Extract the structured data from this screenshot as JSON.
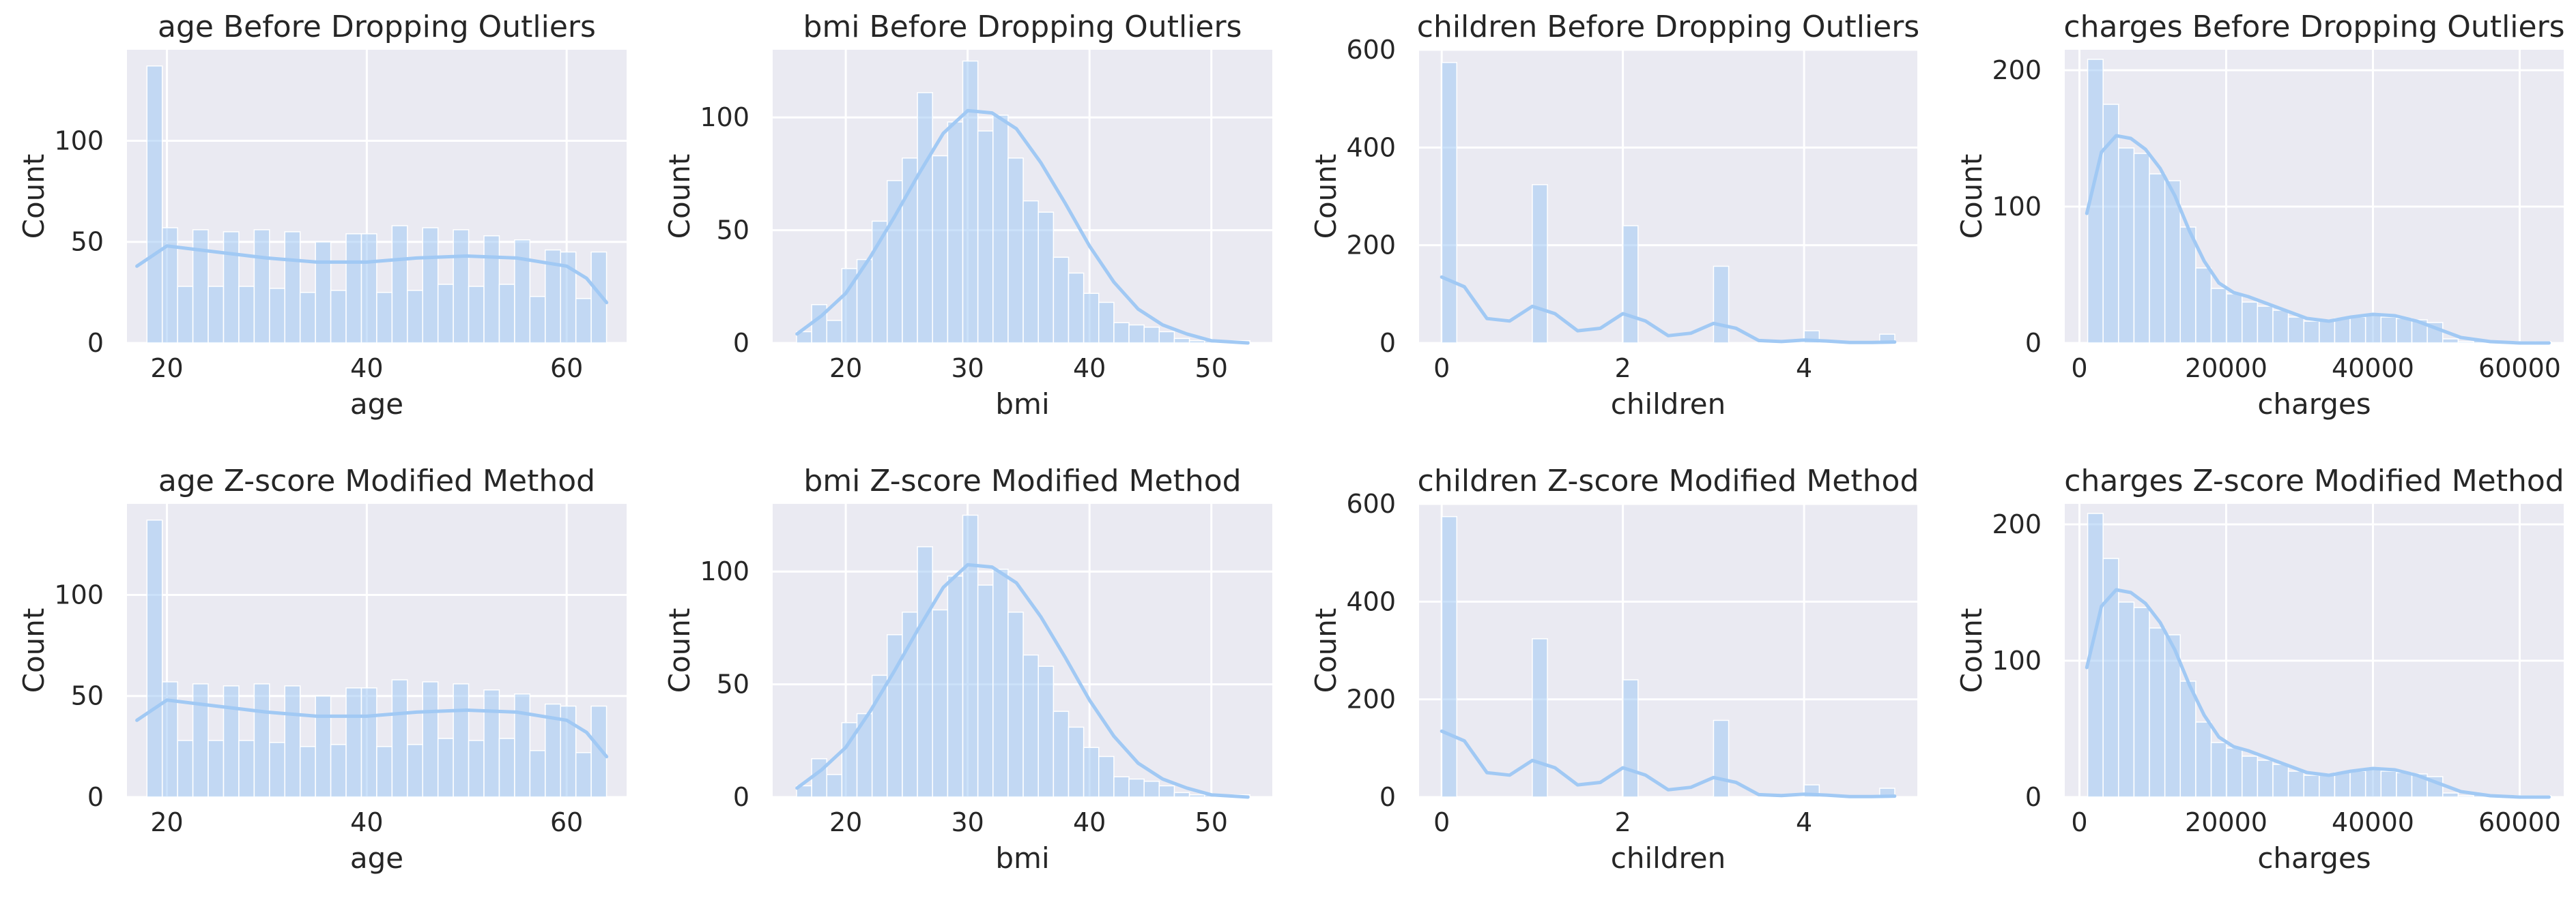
{
  "figure": {
    "rows": 2,
    "cols": 4
  },
  "colors": {
    "panel_bg": "#EAEAF2",
    "grid": "#FFFFFF",
    "bar_fill": "#A1C9F4",
    "bar_edge": "#FFFFFF",
    "kde_line": "#A1C9F4",
    "text": "#262626"
  },
  "chart_data": [
    {
      "type": "bar",
      "title": "age Before Dropping Outliers",
      "xlabel": "age",
      "ylabel": "Count",
      "xlim": [
        16,
        66
      ],
      "ylim": [
        0,
        145
      ],
      "xticks": [
        20,
        40,
        60
      ],
      "xtick_labels": [
        "20",
        "40",
        "60"
      ],
      "yticks": [
        0,
        50,
        100
      ],
      "ytick_labels": [
        "0",
        "50",
        "100"
      ],
      "bin_start": 18,
      "bin_width": 1.533,
      "values": [
        137,
        57,
        28,
        56,
        28,
        55,
        28,
        56,
        27,
        55,
        25,
        50,
        26,
        54,
        54,
        25,
        58,
        26,
        57,
        29,
        56,
        28,
        53,
        29,
        51,
        23,
        46,
        45,
        22,
        45
      ],
      "kde": {
        "x": [
          17,
          20,
          25,
          30,
          35,
          40,
          45,
          50,
          55,
          60,
          62,
          64
        ],
        "y": [
          38,
          48,
          45,
          42,
          40,
          40,
          42,
          43,
          42,
          38,
          32,
          20
        ]
      }
    },
    {
      "type": "bar",
      "title": "bmi Before Dropping Outliers",
      "xlabel": "bmi",
      "ylabel": "Count",
      "xlim": [
        14,
        55
      ],
      "ylim": [
        0,
        130
      ],
      "xticks": [
        20,
        30,
        40,
        50
      ],
      "xtick_labels": [
        "20",
        "30",
        "40",
        "50"
      ],
      "yticks": [
        0,
        50,
        100
      ],
      "ytick_labels": [
        "0",
        "50",
        "100"
      ],
      "bin_start": 15.96,
      "bin_width": 1.24,
      "values": [
        5,
        17,
        10,
        33,
        37,
        54,
        72,
        82,
        111,
        83,
        98,
        125,
        94,
        101,
        82,
        63,
        58,
        38,
        31,
        22,
        18,
        9,
        8,
        7,
        5,
        2,
        1,
        1,
        1,
        1
      ],
      "kde": {
        "x": [
          16,
          18,
          20,
          22,
          24,
          26,
          28,
          30,
          32,
          34,
          36,
          38,
          40,
          42,
          44,
          46,
          48,
          50,
          53
        ],
        "y": [
          4,
          12,
          22,
          38,
          56,
          75,
          93,
          103,
          102,
          95,
          80,
          62,
          43,
          27,
          15,
          8,
          4,
          1,
          0
        ]
      }
    },
    {
      "type": "bar",
      "title": "children Before Dropping Outliers",
      "xlabel": "children",
      "ylabel": "Count",
      "xlim": [
        -0.25,
        5.25
      ],
      "ylim": [
        0,
        600
      ],
      "xticks": [
        0,
        2,
        4
      ],
      "xtick_labels": [
        "0",
        "2",
        "4"
      ],
      "yticks": [
        0,
        200,
        400,
        600
      ],
      "ytick_labels": [
        "0",
        "200",
        "400",
        "600"
      ],
      "bin_start": 0,
      "bin_width": 0.1667,
      "values": [
        574,
        0,
        0,
        0,
        0,
        0,
        324,
        0,
        0,
        0,
        0,
        0,
        240,
        0,
        0,
        0,
        0,
        0,
        157,
        0,
        0,
        0,
        0,
        0,
        25,
        0,
        0,
        0,
        0,
        18
      ],
      "kde": {
        "x": [
          0,
          0.25,
          0.5,
          0.75,
          1,
          1.25,
          1.5,
          1.75,
          2,
          2.25,
          2.5,
          2.75,
          3,
          3.25,
          3.5,
          3.75,
          4,
          4.25,
          4.5,
          4.75,
          5
        ],
        "y": [
          135,
          115,
          50,
          45,
          75,
          60,
          25,
          30,
          60,
          45,
          15,
          20,
          40,
          30,
          5,
          3,
          6,
          4,
          1,
          1,
          2
        ]
      }
    },
    {
      "type": "bar",
      "title": "charges Before Dropping Outliers",
      "xlabel": "charges",
      "ylabel": "Count",
      "xlim": [
        -2000,
        66000
      ],
      "ylim": [
        0,
        215
      ],
      "xticks": [
        0,
        20000,
        40000,
        60000
      ],
      "xtick_labels": [
        "0",
        "20000",
        "40000",
        "60000"
      ],
      "yticks": [
        0,
        100,
        200
      ],
      "ytick_labels": [
        "0",
        "100",
        "200"
      ],
      "bin_start": 1122,
      "bin_width": 2104,
      "values": [
        208,
        175,
        143,
        139,
        124,
        119,
        85,
        55,
        40,
        36,
        30,
        27,
        24,
        19,
        16,
        17,
        18,
        19,
        21,
        19,
        18,
        17,
        15,
        3,
        1,
        2,
        1,
        1,
        1,
        1
      ],
      "kde": {
        "x": [
          1000,
          3000,
          5000,
          7000,
          9000,
          11000,
          13000,
          15000,
          17000,
          19000,
          21000,
          23000,
          25000,
          28000,
          31000,
          34000,
          37000,
          40000,
          43000,
          46000,
          49000,
          52000,
          56000,
          60000,
          64000
        ],
        "y": [
          95,
          140,
          152,
          150,
          142,
          128,
          108,
          82,
          60,
          44,
          37,
          34,
          30,
          24,
          18,
          16,
          19,
          21,
          20,
          16,
          10,
          4,
          1,
          0,
          0
        ]
      }
    },
    {
      "type": "bar",
      "title": "age  Z-score Modified Method",
      "xlabel": "age",
      "ylabel": "Count",
      "xlim": [
        16,
        66
      ],
      "ylim": [
        0,
        145
      ],
      "xticks": [
        20,
        40,
        60
      ],
      "xtick_labels": [
        "20",
        "40",
        "60"
      ],
      "yticks": [
        0,
        50,
        100
      ],
      "ytick_labels": [
        "0",
        "50",
        "100"
      ],
      "bin_start": 18,
      "bin_width": 1.533,
      "values": [
        137,
        57,
        28,
        56,
        28,
        55,
        28,
        56,
        27,
        55,
        25,
        50,
        26,
        54,
        54,
        25,
        58,
        26,
        57,
        29,
        56,
        28,
        53,
        29,
        51,
        23,
        46,
        45,
        22,
        45
      ],
      "kde": {
        "x": [
          17,
          20,
          25,
          30,
          35,
          40,
          45,
          50,
          55,
          60,
          62,
          64
        ],
        "y": [
          38,
          48,
          45,
          42,
          40,
          40,
          42,
          43,
          42,
          38,
          32,
          20
        ]
      }
    },
    {
      "type": "bar",
      "title": "bmi  Z-score Modified Method",
      "xlabel": "bmi",
      "ylabel": "Count",
      "xlim": [
        14,
        55
      ],
      "ylim": [
        0,
        130
      ],
      "xticks": [
        20,
        30,
        40,
        50
      ],
      "xtick_labels": [
        "20",
        "30",
        "40",
        "50"
      ],
      "yticks": [
        0,
        50,
        100
      ],
      "ytick_labels": [
        "0",
        "50",
        "100"
      ],
      "bin_start": 15.96,
      "bin_width": 1.24,
      "values": [
        5,
        17,
        10,
        33,
        37,
        54,
        72,
        82,
        111,
        83,
        98,
        125,
        94,
        101,
        82,
        63,
        58,
        38,
        31,
        22,
        18,
        9,
        8,
        7,
        5,
        2,
        1,
        1,
        1,
        1
      ],
      "kde": {
        "x": [
          16,
          18,
          20,
          22,
          24,
          26,
          28,
          30,
          32,
          34,
          36,
          38,
          40,
          42,
          44,
          46,
          48,
          50,
          53
        ],
        "y": [
          4,
          12,
          22,
          38,
          56,
          75,
          93,
          103,
          102,
          95,
          80,
          62,
          43,
          27,
          15,
          8,
          4,
          1,
          0
        ]
      }
    },
    {
      "type": "bar",
      "title": "children  Z-score Modified Method",
      "xlabel": "children",
      "ylabel": "Count",
      "xlim": [
        -0.25,
        5.25
      ],
      "ylim": [
        0,
        600
      ],
      "xticks": [
        0,
        2,
        4
      ],
      "xtick_labels": [
        "0",
        "2",
        "4"
      ],
      "yticks": [
        0,
        200,
        400,
        600
      ],
      "ytick_labels": [
        "0",
        "200",
        "400",
        "600"
      ],
      "bin_start": 0,
      "bin_width": 0.1667,
      "values": [
        574,
        0,
        0,
        0,
        0,
        0,
        324,
        0,
        0,
        0,
        0,
        0,
        240,
        0,
        0,
        0,
        0,
        0,
        157,
        0,
        0,
        0,
        0,
        0,
        25,
        0,
        0,
        0,
        0,
        18
      ],
      "kde": {
        "x": [
          0,
          0.25,
          0.5,
          0.75,
          1,
          1.25,
          1.5,
          1.75,
          2,
          2.25,
          2.5,
          2.75,
          3,
          3.25,
          3.5,
          3.75,
          4,
          4.25,
          4.5,
          4.75,
          5
        ],
        "y": [
          135,
          115,
          50,
          45,
          75,
          60,
          25,
          30,
          60,
          45,
          15,
          20,
          40,
          30,
          5,
          3,
          6,
          4,
          1,
          1,
          2
        ]
      }
    },
    {
      "type": "bar",
      "title": "charges  Z-score Modified Method",
      "xlabel": "charges",
      "ylabel": "Count",
      "xlim": [
        -2000,
        66000
      ],
      "ylim": [
        0,
        215
      ],
      "xticks": [
        0,
        20000,
        40000,
        60000
      ],
      "xtick_labels": [
        "0",
        "20000",
        "40000",
        "60000"
      ],
      "yticks": [
        0,
        100,
        200
      ],
      "ytick_labels": [
        "0",
        "100",
        "200"
      ],
      "bin_start": 1122,
      "bin_width": 2104,
      "values": [
        208,
        175,
        143,
        139,
        124,
        119,
        85,
        55,
        40,
        36,
        30,
        27,
        24,
        19,
        16,
        17,
        18,
        19,
        21,
        19,
        18,
        17,
        15,
        3,
        1,
        2,
        1,
        1,
        1,
        1
      ],
      "kde": {
        "x": [
          1000,
          3000,
          5000,
          7000,
          9000,
          11000,
          13000,
          15000,
          17000,
          19000,
          21000,
          23000,
          25000,
          28000,
          31000,
          34000,
          37000,
          40000,
          43000,
          46000,
          49000,
          52000,
          56000,
          60000,
          64000
        ],
        "y": [
          95,
          140,
          152,
          150,
          142,
          128,
          108,
          82,
          60,
          44,
          37,
          34,
          30,
          24,
          18,
          16,
          19,
          21,
          20,
          16,
          10,
          4,
          1,
          0,
          0
        ]
      }
    }
  ]
}
